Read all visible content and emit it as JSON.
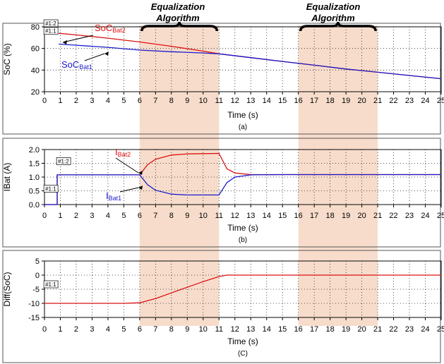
{
  "shading": {
    "color": "#f7dccb",
    "regions": [
      [
        6,
        11
      ],
      [
        16,
        21
      ]
    ],
    "labels": [
      "Equalization Algorithm",
      "Equalization Algorithm"
    ]
  },
  "colors": {
    "bat1": "#1a1acc",
    "bat2": "#dd1111",
    "grid": "#222222",
    "frame": "#000000"
  },
  "chart_data": [
    {
      "type": "line",
      "caption": "(a)",
      "xlabel": "Time (s)",
      "ylabel": "SoC (%)",
      "xlim": [
        0,
        25
      ],
      "ylim": [
        20,
        80
      ],
      "xticks": [
        0,
        1,
        2,
        3,
        4,
        5,
        6,
        7,
        8,
        9,
        10,
        11,
        12,
        13,
        14,
        15,
        16,
        17,
        18,
        19,
        20,
        21,
        22,
        23,
        24,
        25
      ],
      "yticks": [
        20,
        40,
        60,
        80
      ],
      "grid": true,
      "probe_labels": [
        "#1:2",
        "#1:1"
      ],
      "series": [
        {
          "name": "SoCBat2",
          "label_main": "SoC",
          "label_sub": "Bat2",
          "color": "#dd1111",
          "x": [
            0.9,
            2,
            4,
            6,
            8,
            10,
            11,
            13,
            15,
            17,
            19,
            21,
            23,
            25
          ],
          "y": [
            74,
            72.5,
            69.5,
            66,
            62,
            57.5,
            55,
            51.5,
            48,
            44.5,
            41,
            38,
            35,
            32
          ]
        },
        {
          "name": "SoCBat1",
          "label_main": "SoC",
          "label_sub": "Bat1",
          "color": "#1a1acc",
          "x": [
            0.9,
            2,
            4,
            6,
            8,
            10,
            11,
            13,
            15,
            17,
            19,
            21,
            23,
            25
          ],
          "y": [
            64,
            63,
            61,
            58.5,
            57,
            55.8,
            55,
            51.5,
            48,
            44.5,
            41,
            38,
            35,
            32
          ]
        }
      ]
    },
    {
      "type": "line",
      "caption": "(b)",
      "xlabel": "Time (s)",
      "ylabel": "IBat (A)",
      "xlim": [
        0,
        25
      ],
      "ylim": [
        0,
        2
      ],
      "xticks": [
        0,
        1,
        2,
        3,
        4,
        5,
        6,
        7,
        8,
        9,
        10,
        11,
        12,
        13,
        14,
        15,
        16,
        17,
        18,
        19,
        20,
        21,
        22,
        23,
        24,
        25
      ],
      "yticks": [
        0.0,
        0.5,
        1.0,
        1.5,
        2.0
      ],
      "ytick_labels": [
        "0.0",
        "0.5",
        "1.0",
        "1.5",
        "2.0"
      ],
      "grid": true,
      "probe_labels": [
        "#1:2",
        "#1:1"
      ],
      "series": [
        {
          "name": "IBat2",
          "label_main": "I",
          "label_sub": "Bat2",
          "color": "#dd1111",
          "x": [
            0,
            0.8,
            0.8,
            1,
            3,
            5,
            6,
            6.5,
            7,
            8,
            9,
            10,
            11,
            11.5,
            12,
            13,
            15,
            20,
            25
          ],
          "y": [
            0,
            0,
            1.08,
            1.08,
            1.08,
            1.08,
            1.08,
            1.45,
            1.65,
            1.8,
            1.84,
            1.85,
            1.86,
            1.3,
            1.15,
            1.09,
            1.09,
            1.09,
            1.09
          ]
        },
        {
          "name": "IBat1",
          "label_main": "I",
          "label_sub": "Bat1",
          "color": "#1a1acc",
          "x": [
            0,
            0.8,
            0.8,
            1,
            3,
            5,
            6,
            6.5,
            7,
            8,
            9,
            10,
            11,
            11.5,
            12,
            13,
            15,
            20,
            25
          ],
          "y": [
            0,
            0,
            1.08,
            1.08,
            1.08,
            1.08,
            1.08,
            0.72,
            0.52,
            0.38,
            0.35,
            0.35,
            0.35,
            0.8,
            1.0,
            1.08,
            1.09,
            1.09,
            1.09
          ]
        }
      ]
    },
    {
      "type": "line",
      "caption": "(C)",
      "xlabel": "Time (s)",
      "ylabel": "Diff(SoC)",
      "xlim": [
        0,
        25
      ],
      "ylim": [
        -15,
        5
      ],
      "xticks": [
        0,
        1,
        2,
        3,
        4,
        5,
        6,
        7,
        8,
        9,
        10,
        11,
        12,
        13,
        14,
        15,
        16,
        17,
        18,
        19,
        20,
        21,
        22,
        23,
        24,
        25
      ],
      "yticks": [
        -15,
        -10,
        -5,
        0,
        5
      ],
      "grid": true,
      "probe_labels": [
        "#1:1"
      ],
      "series": [
        {
          "name": "Diff(SoC)",
          "color": "#dd1111",
          "x": [
            0,
            5,
            6,
            7,
            8,
            9,
            10,
            11,
            11.5,
            12,
            15,
            20,
            25
          ],
          "y": [
            -10,
            -10,
            -9.8,
            -8.3,
            -6.3,
            -4.3,
            -2.3,
            -0.5,
            0,
            0,
            0,
            0,
            0
          ]
        }
      ]
    }
  ]
}
